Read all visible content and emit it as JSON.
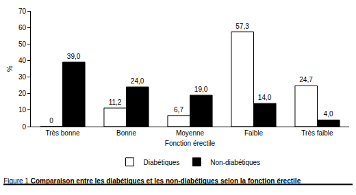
{
  "chart_data": {
    "type": "bar",
    "title": "Figure 1 Comparaison entre les diabétiques et les non-diabétiques selon la fonction érectile",
    "x_label": "Fonction érectile",
    "y_label": "%",
    "categories": [
      "Très bonne",
      "Bonne",
      "Moyenne",
      "Faible",
      "Très faible"
    ],
    "series": [
      {
        "name": "Diabétiques",
        "color": "#ffffff",
        "values": [
          0,
          11.2,
          6.7,
          57.3,
          24.7
        ],
        "value_labels": [
          "0",
          "11,2",
          "6,7",
          "57,3",
          "24,7"
        ]
      },
      {
        "name": "Non-diabétiques",
        "color": "#000000",
        "values": [
          39.0,
          24.0,
          19.0,
          14.0,
          4.0
        ],
        "value_labels": [
          "39,0",
          "24,0",
          "19,0",
          "14,0",
          "4,0"
        ]
      }
    ],
    "ylim": [
      0,
      70
    ],
    "yticks": [
      0,
      10,
      20,
      30,
      40,
      50,
      60,
      70
    ],
    "grid": false,
    "legend": "bottom",
    "data_labels": true
  }
}
